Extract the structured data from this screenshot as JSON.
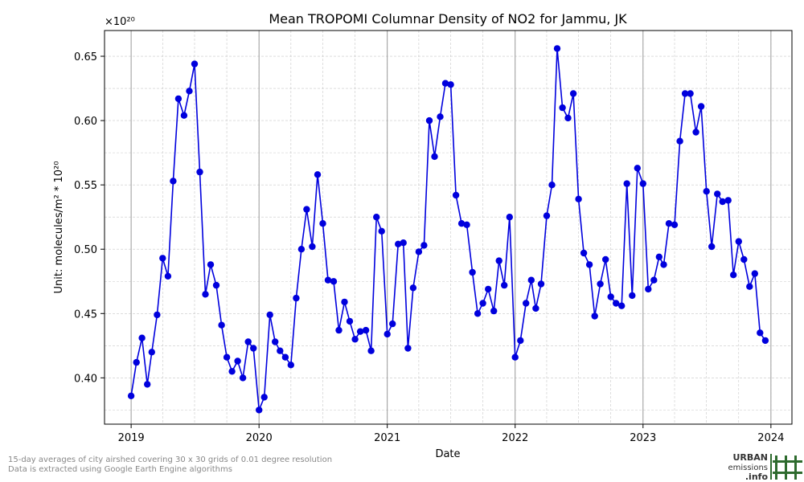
{
  "chart_data": {
    "type": "line",
    "title": "Mean TROPOMI Columnar Density of NO2 for Jammu, JK",
    "xlabel": "Date",
    "ylabel": "Unit: molecules/m² * 10²⁰",
    "y_multiplier_label": "×10²⁰",
    "ylim": [
      0.364,
      0.67
    ],
    "xlim": [
      "2018-10-17",
      "2024-03-01"
    ],
    "x_ticks": [
      "2019",
      "2020",
      "2021",
      "2022",
      "2023",
      "2024"
    ],
    "y_ticks": [
      "0.40",
      "0.45",
      "0.50",
      "0.55",
      "0.60",
      "0.65"
    ],
    "grid": true,
    "series_color": "#0000dd",
    "series": [
      {
        "x": [
          "2019-01-01",
          "2019-01-16",
          "2019-02-01",
          "2019-02-16",
          "2019-03-01",
          "2019-03-16",
          "2019-04-01",
          "2019-04-16",
          "2019-05-01",
          "2019-05-16",
          "2019-06-01",
          "2019-06-16",
          "2019-07-01",
          "2019-07-16",
          "2019-08-01",
          "2019-08-16",
          "2019-09-01",
          "2019-09-16",
          "2019-10-01",
          "2019-10-16",
          "2019-11-01",
          "2019-11-16",
          "2019-12-01",
          "2019-12-16",
          "2020-01-01",
          "2020-01-16",
          "2020-02-01",
          "2020-02-16",
          "2020-03-01",
          "2020-03-16",
          "2020-04-01",
          "2020-04-16",
          "2020-05-01",
          "2020-05-16",
          "2020-06-01",
          "2020-06-16",
          "2020-07-01",
          "2020-07-16",
          "2020-08-01",
          "2020-08-16",
          "2020-09-01",
          "2020-09-16",
          "2020-10-01",
          "2020-10-16",
          "2020-11-01",
          "2020-11-16",
          "2020-12-01",
          "2020-12-16",
          "2021-01-01",
          "2021-01-16",
          "2021-02-01",
          "2021-02-16",
          "2021-03-01",
          "2021-03-16",
          "2021-04-01",
          "2021-04-16",
          "2021-05-01",
          "2021-05-16",
          "2021-06-01",
          "2021-06-16",
          "2021-07-01",
          "2021-07-16",
          "2021-08-01",
          "2021-08-16",
          "2021-09-01",
          "2021-09-16",
          "2021-10-01",
          "2021-10-16",
          "2021-11-01",
          "2021-11-16",
          "2021-12-01",
          "2021-12-16",
          "2022-01-01",
          "2022-01-16",
          "2022-02-01",
          "2022-02-16",
          "2022-03-01",
          "2022-03-16",
          "2022-04-01",
          "2022-04-16",
          "2022-05-01",
          "2022-05-16",
          "2022-06-01",
          "2022-06-16",
          "2022-07-01",
          "2022-07-16",
          "2022-08-01",
          "2022-08-16",
          "2022-09-01",
          "2022-09-16",
          "2022-10-01",
          "2022-10-16",
          "2022-11-01",
          "2022-11-16",
          "2022-12-01",
          "2022-12-16",
          "2023-01-01",
          "2023-01-16",
          "2023-02-01",
          "2023-02-16",
          "2023-03-01",
          "2023-03-16",
          "2023-04-01",
          "2023-04-16",
          "2023-05-01",
          "2023-05-16",
          "2023-06-01",
          "2023-06-16",
          "2023-07-01",
          "2023-07-16",
          "2023-08-01",
          "2023-08-16",
          "2023-09-01",
          "2023-09-16",
          "2023-10-01",
          "2023-10-16",
          "2023-11-01",
          "2023-11-16",
          "2023-12-01",
          "2023-12-16"
        ],
        "y": [
          0.386,
          0.412,
          0.431,
          0.395,
          0.42,
          0.449,
          0.493,
          0.479,
          0.553,
          0.617,
          0.604,
          0.623,
          0.644,
          0.56,
          0.465,
          0.488,
          0.472,
          0.441,
          0.416,
          0.405,
          0.413,
          0.4,
          0.428,
          0.423,
          0.375,
          0.385,
          0.449,
          0.428,
          0.421,
          0.416,
          0.41,
          0.462,
          0.5,
          0.531,
          0.502,
          0.558,
          0.52,
          0.476,
          0.475,
          0.437,
          0.459,
          0.444,
          0.43,
          0.436,
          0.437,
          0.421,
          0.525,
          0.514,
          0.434,
          0.442,
          0.504,
          0.505,
          0.423,
          0.47,
          0.498,
          0.503,
          0.6,
          0.572,
          0.603,
          0.629,
          0.628,
          0.542,
          0.52,
          0.519,
          0.482,
          0.45,
          0.458,
          0.469,
          0.452,
          0.491,
          0.472,
          0.525,
          0.416,
          0.429,
          0.458,
          0.476,
          0.454,
          0.473,
          0.526,
          0.55,
          0.656,
          0.61,
          0.602,
          0.621,
          0.539,
          0.497,
          0.488,
          0.448,
          0.473,
          0.492,
          0.463,
          0.458,
          0.456,
          0.551,
          0.464,
          0.563,
          0.551,
          0.469,
          0.476,
          0.494,
          0.488,
          0.52,
          0.519,
          0.584,
          0.621,
          0.621,
          0.591,
          0.611,
          0.545,
          0.502,
          0.543,
          0.537,
          0.538,
          0.48,
          0.506,
          0.492,
          0.471,
          0.481,
          0.435,
          0.429
        ]
      }
    ]
  },
  "footnotes": {
    "line1": "15-day averages of city airshed covering 30 x 30 grids of 0.01 degree resolution",
    "line2": "Data is extracted using Google Earth Engine algorithms"
  },
  "logo": {
    "line1": "URBAN",
    "line2": "emissions",
    "line3": ".info",
    "color": "#2e6b2e"
  }
}
